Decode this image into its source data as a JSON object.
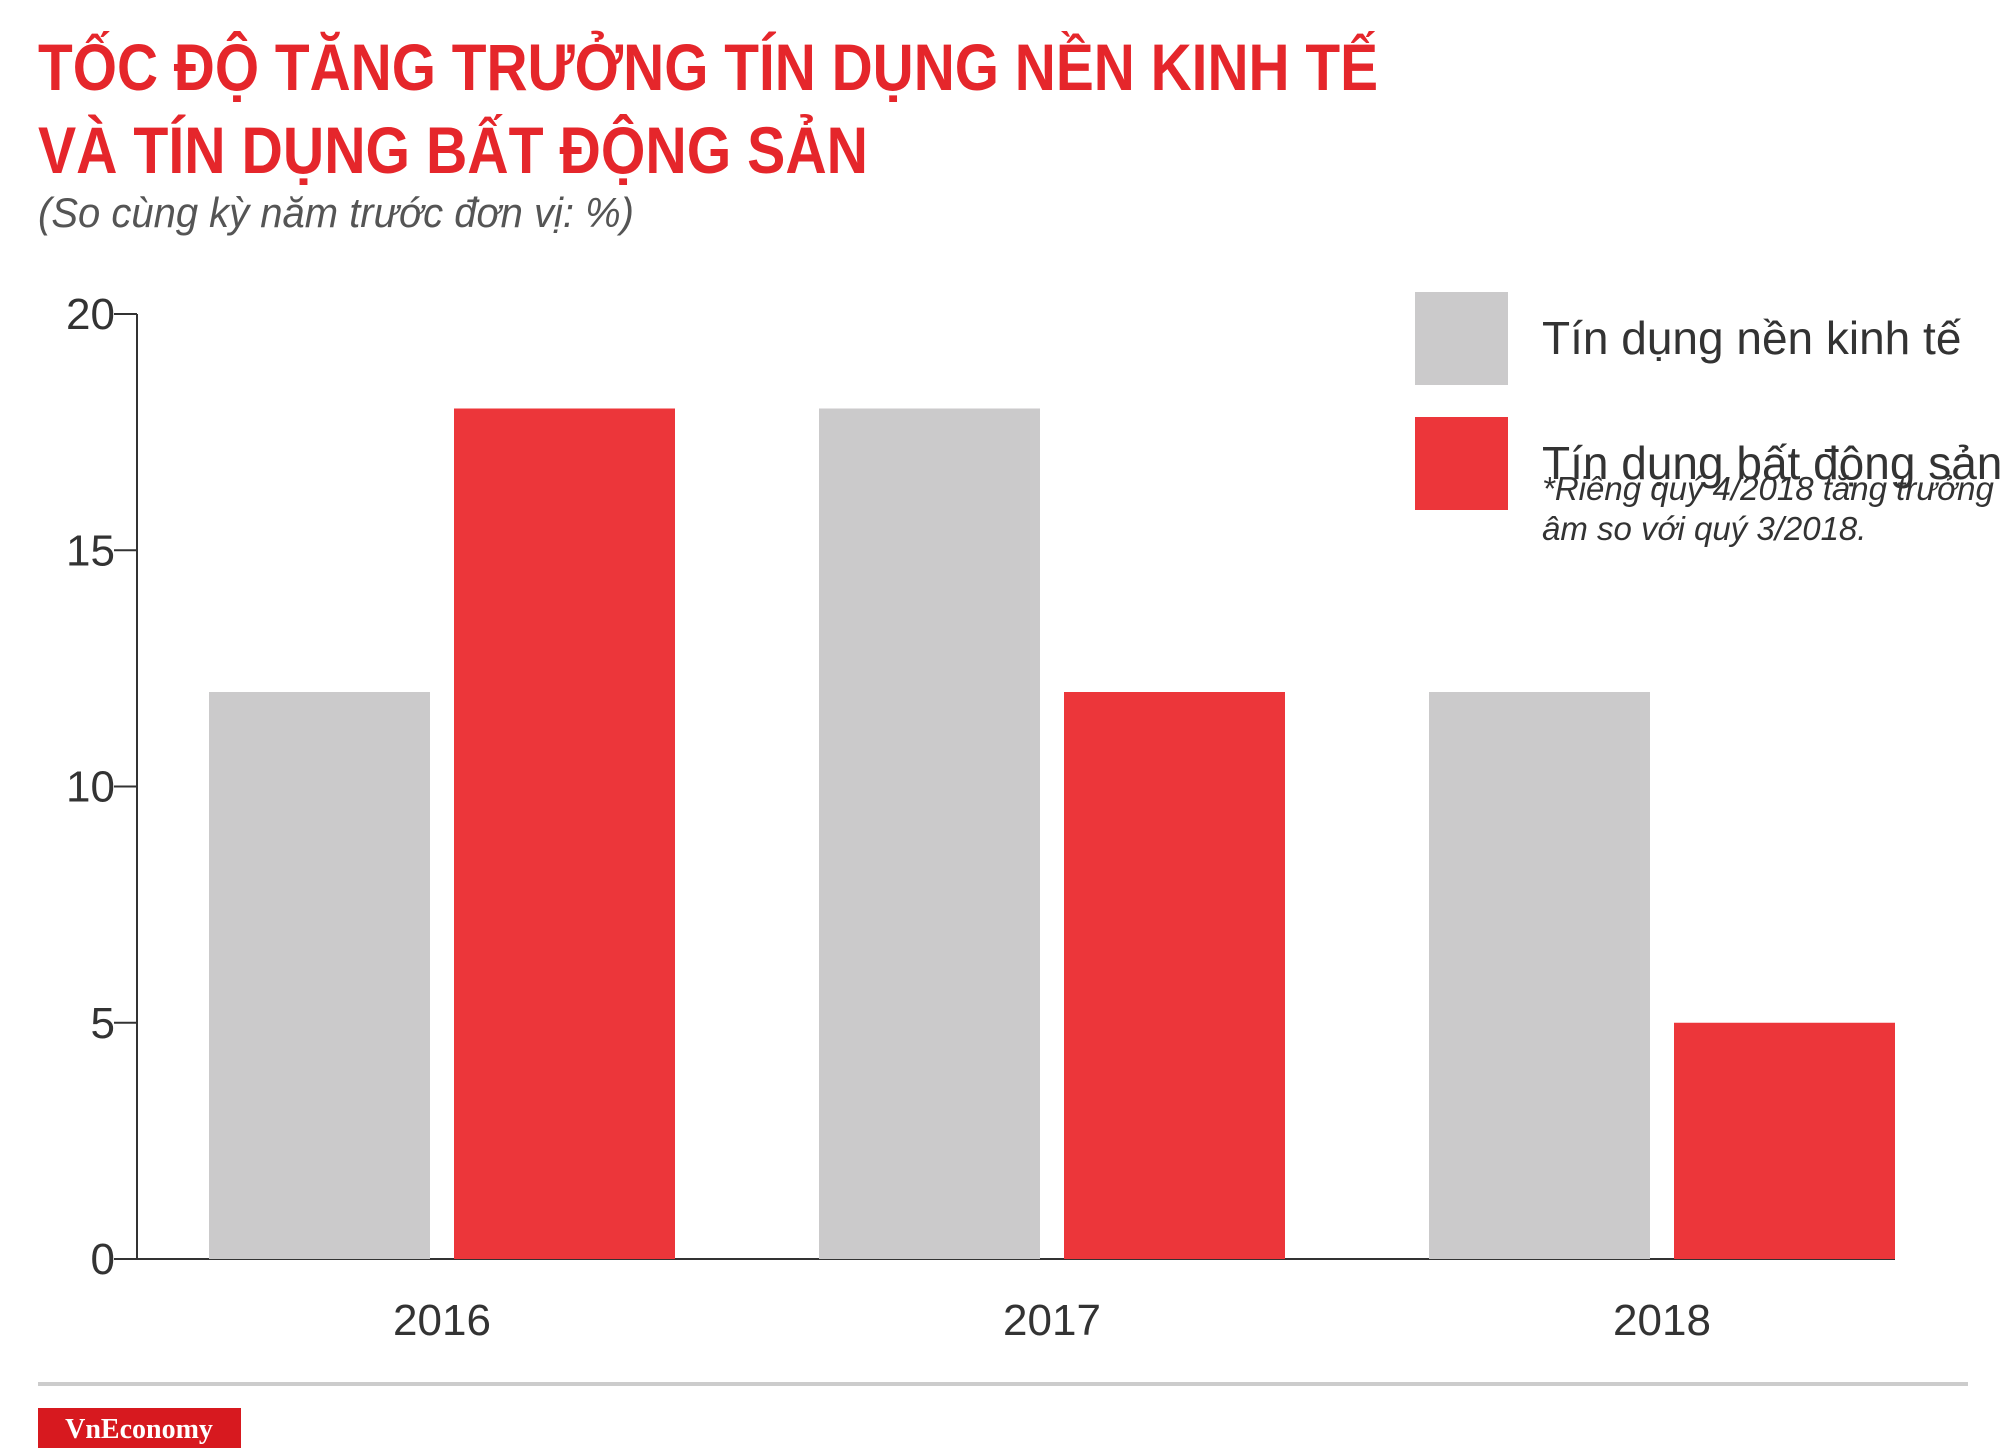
{
  "chart_data": {
    "type": "bar",
    "title": [
      "TỐC ĐỘ TĂNG TRƯỞNG TÍN DỤNG NỀN KINH TẾ",
      "VÀ TÍN DỤNG BẤT ĐỘNG SẢN"
    ],
    "subtitle": "(So cùng kỳ năm trước đơn vị: %)",
    "categories": [
      "2016",
      "2017",
      "2018"
    ],
    "series": [
      {
        "name": "Tín dụng nền kinh tế",
        "color": "#cbcacb",
        "values": [
          12,
          18,
          12
        ]
      },
      {
        "name": "Tín dụng bất động sản",
        "color": "#ec363a",
        "values": [
          18,
          12,
          5
        ]
      }
    ],
    "note": [
      "*Riêng quý 4/2018 tăng trưởng",
      "âm so với quý 3/2018."
    ],
    "ylim": [
      0,
      20
    ],
    "yticks": [
      0,
      5,
      10,
      15,
      20
    ],
    "grid": false,
    "legend": "top-right",
    "logo": "VnEconomy"
  }
}
